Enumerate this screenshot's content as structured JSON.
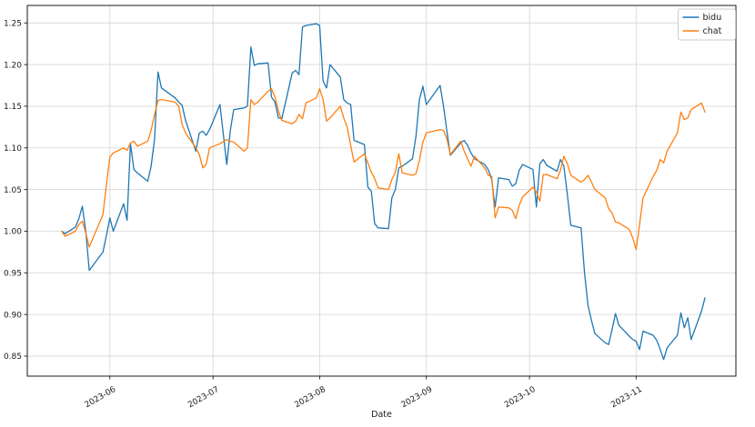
{
  "chart_data": {
    "type": "line",
    "title": "",
    "xlabel": "Date",
    "ylabel": "",
    "grid": true,
    "legend": {
      "position": "upper right",
      "entries": [
        "bidu",
        "chat"
      ]
    },
    "x_tick_labels": [
      "2023-06",
      "2023-07",
      "2023-08",
      "2023-09",
      "2023-10",
      "2023-11"
    ],
    "x_tick_dates": [
      "2023-06-01",
      "2023-07-01",
      "2023-08-01",
      "2023-09-01",
      "2023-10-01",
      "2023-11-01"
    ],
    "y_ticks": [
      0.85,
      0.9,
      0.95,
      1.0,
      1.05,
      1.1,
      1.15,
      1.2,
      1.25
    ],
    "x_domain": [
      "2023-05-08",
      "2023-11-30"
    ],
    "y_domain": [
      0.826,
      1.271
    ],
    "dates": [
      "2023-05-18",
      "2023-05-19",
      "2023-05-22",
      "2023-05-23",
      "2023-05-24",
      "2023-05-25",
      "2023-05-26",
      "2023-05-30",
      "2023-05-31",
      "2023-06-01",
      "2023-06-02",
      "2023-06-05",
      "2023-06-06",
      "2023-06-07",
      "2023-06-08",
      "2023-06-09",
      "2023-06-12",
      "2023-06-13",
      "2023-06-14",
      "2023-06-15",
      "2023-06-16",
      "2023-06-20",
      "2023-06-21",
      "2023-06-22",
      "2023-06-23",
      "2023-06-26",
      "2023-06-27",
      "2023-06-28",
      "2023-06-29",
      "2023-06-30",
      "2023-07-03",
      "2023-07-05",
      "2023-07-06",
      "2023-07-07",
      "2023-07-10",
      "2023-07-11",
      "2023-07-12",
      "2023-07-13",
      "2023-07-14",
      "2023-07-17",
      "2023-07-18",
      "2023-07-19",
      "2023-07-20",
      "2023-07-21",
      "2023-07-24",
      "2023-07-25",
      "2023-07-26",
      "2023-07-27",
      "2023-07-28",
      "2023-07-31",
      "2023-08-01",
      "2023-08-02",
      "2023-08-03",
      "2023-08-04",
      "2023-08-07",
      "2023-08-08",
      "2023-08-09",
      "2023-08-10",
      "2023-08-11",
      "2023-08-14",
      "2023-08-15",
      "2023-08-16",
      "2023-08-17",
      "2023-08-18",
      "2023-08-21",
      "2023-08-22",
      "2023-08-23",
      "2023-08-24",
      "2023-08-25",
      "2023-08-28",
      "2023-08-29",
      "2023-08-30",
      "2023-08-31",
      "2023-09-01",
      "2023-09-05",
      "2023-09-06",
      "2023-09-07",
      "2023-09-08",
      "2023-09-11",
      "2023-09-12",
      "2023-09-13",
      "2023-09-14",
      "2023-09-15",
      "2023-09-18",
      "2023-09-19",
      "2023-09-20",
      "2023-09-21",
      "2023-09-22",
      "2023-09-25",
      "2023-09-26",
      "2023-09-27",
      "2023-09-28",
      "2023-09-29",
      "2023-10-02",
      "2023-10-03",
      "2023-10-04",
      "2023-10-05",
      "2023-10-06",
      "2023-10-09",
      "2023-10-10",
      "2023-10-11",
      "2023-10-12",
      "2023-10-13",
      "2023-10-16",
      "2023-10-17",
      "2023-10-18",
      "2023-10-19",
      "2023-10-20",
      "2023-10-23",
      "2023-10-24",
      "2023-10-25",
      "2023-10-26",
      "2023-10-27",
      "2023-10-30",
      "2023-10-31",
      "2023-11-01",
      "2023-11-02",
      "2023-11-03",
      "2023-11-06",
      "2023-11-07",
      "2023-11-08",
      "2023-11-09",
      "2023-11-10",
      "2023-11-13",
      "2023-11-14",
      "2023-11-15",
      "2023-11-16",
      "2023-11-17",
      "2023-11-20",
      "2023-11-21"
    ],
    "series": [
      {
        "name": "bidu",
        "color": "#1f77b4",
        "values": [
          1.0,
          0.997,
          1.005,
          1.015,
          1.03,
          1.0,
          0.953,
          0.975,
          0.995,
          1.016,
          1.0,
          1.033,
          1.013,
          1.105,
          1.074,
          1.07,
          1.06,
          1.078,
          1.11,
          1.191,
          1.172,
          1.16,
          1.155,
          1.151,
          1.133,
          1.096,
          1.118,
          1.12,
          1.115,
          1.122,
          1.152,
          1.08,
          1.12,
          1.146,
          1.148,
          1.15,
          1.221,
          1.199,
          1.201,
          1.202,
          1.161,
          1.155,
          1.136,
          1.135,
          1.19,
          1.193,
          1.188,
          1.245,
          1.247,
          1.249,
          1.247,
          1.18,
          1.172,
          1.2,
          1.185,
          1.158,
          1.154,
          1.152,
          1.109,
          1.104,
          1.053,
          1.048,
          1.009,
          1.004,
          1.003,
          1.04,
          1.05,
          1.076,
          1.078,
          1.087,
          1.114,
          1.158,
          1.174,
          1.152,
          1.175,
          1.15,
          1.12,
          1.091,
          1.106,
          1.109,
          1.103,
          1.094,
          1.087,
          1.08,
          1.074,
          1.062,
          1.029,
          1.064,
          1.062,
          1.054,
          1.057,
          1.073,
          1.08,
          1.074,
          1.029,
          1.081,
          1.086,
          1.079,
          1.072,
          1.086,
          1.078,
          1.044,
          1.007,
          1.004,
          0.95,
          0.911,
          0.893,
          0.877,
          0.866,
          0.864,
          0.882,
          0.901,
          0.887,
          0.874,
          0.87,
          0.868,
          0.858,
          0.88,
          0.875,
          0.869,
          0.858,
          0.846,
          0.86,
          0.875,
          0.902,
          0.884,
          0.896,
          0.87,
          0.904,
          0.92
        ]
      },
      {
        "name": "chat",
        "color": "#ff7f0e",
        "values": [
          1.0,
          0.994,
          1.0,
          1.008,
          1.012,
          0.998,
          0.981,
          1.02,
          1.056,
          1.089,
          1.094,
          1.1,
          1.097,
          1.106,
          1.108,
          1.102,
          1.108,
          1.121,
          1.14,
          1.157,
          1.158,
          1.155,
          1.15,
          1.128,
          1.118,
          1.1,
          1.092,
          1.076,
          1.08,
          1.1,
          1.105,
          1.11,
          1.108,
          1.107,
          1.096,
          1.1,
          1.158,
          1.152,
          1.155,
          1.168,
          1.171,
          1.161,
          1.144,
          1.133,
          1.129,
          1.132,
          1.14,
          1.135,
          1.154,
          1.16,
          1.171,
          1.158,
          1.132,
          1.136,
          1.15,
          1.136,
          1.125,
          1.103,
          1.083,
          1.093,
          1.082,
          1.071,
          1.063,
          1.052,
          1.05,
          1.062,
          1.071,
          1.093,
          1.07,
          1.067,
          1.069,
          1.085,
          1.107,
          1.118,
          1.122,
          1.121,
          1.111,
          1.092,
          1.108,
          1.096,
          1.087,
          1.078,
          1.09,
          1.076,
          1.067,
          1.066,
          1.016,
          1.029,
          1.028,
          1.025,
          1.015,
          1.031,
          1.041,
          1.053,
          1.047,
          1.036,
          1.068,
          1.068,
          1.063,
          1.073,
          1.09,
          1.081,
          1.067,
          1.059,
          1.062,
          1.067,
          1.059,
          1.05,
          1.04,
          1.027,
          1.022,
          1.011,
          1.01,
          1.002,
          0.992,
          0.978,
          1.008,
          1.04,
          1.066,
          1.073,
          1.086,
          1.082,
          1.096,
          1.118,
          1.143,
          1.134,
          1.136,
          1.146,
          1.154,
          1.143
        ]
      }
    ],
    "colors": {
      "grid": "#d9d9d9",
      "spine": "#1a1a1a",
      "text": "#1a1a1a",
      "legend_border": "#cccccc",
      "background": "#ffffff"
    }
  }
}
